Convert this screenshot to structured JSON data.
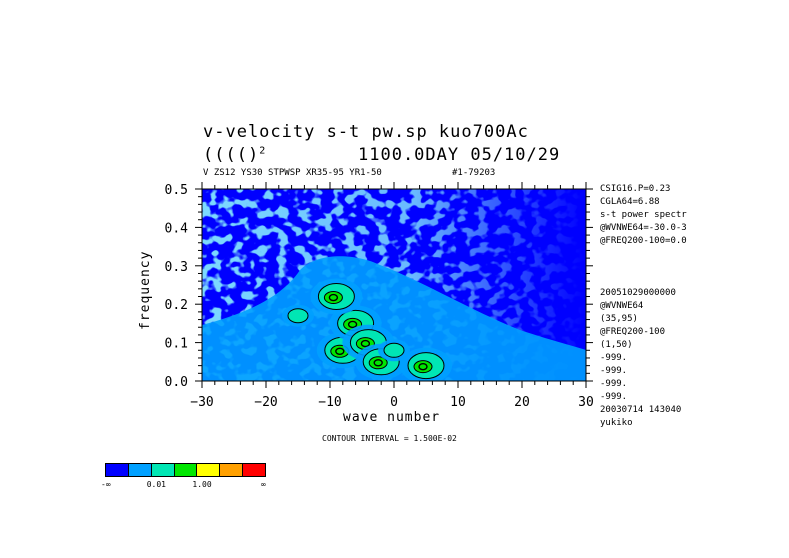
{
  "titles": {
    "line1": "v-velocity s-t pw.sp  kuo700Ac",
    "line2": "(((()",
    "line2_sup": "2",
    "line2_right": "1100.0DAY 05/10/29",
    "subtitle": "V ZS12 YS30 STPWSP XR35-95 YR1-50",
    "subtitle_right": "#1-79203"
  },
  "side_info": [
    "CSIG16.P=0.23",
    "CGLA64=6.88",
    "s-t power spectr",
    "@WVNWE64=-30.0-3",
    "@FREQ200-100=0.0",
    "",
    "",
    "",
    "20051029000000",
    "@WVNWE64",
    "(35,95)",
    "@FREQ200-100",
    "(1,50)",
    "-999.",
    "-999.",
    "-999.",
    "-999.",
    "20030714 143040",
    "yukiko"
  ],
  "contour_interval": "CONTOUR INTERVAL = 1.500E-02",
  "colorbar": {
    "colors": [
      "#0000ff",
      "#00a0ff",
      "#00e6b4",
      "#00e600",
      "#ffff00",
      "#ffa000",
      "#ff0000"
    ],
    "labels": [
      "-∞",
      "0.01",
      "1.00",
      "∞"
    ]
  },
  "chart_data": {
    "type": "heatmap",
    "xlabel": "wave number",
    "ylabel": "frequency",
    "xlim": [
      -30,
      30
    ],
    "ylim": [
      0.0,
      0.5
    ],
    "x_ticks": [
      -30,
      -20,
      -10,
      0,
      10,
      20,
      30
    ],
    "y_ticks": [
      0.0,
      0.1,
      0.2,
      0.3,
      0.4,
      0.5
    ],
    "y_tick_labels": [
      "0.0",
      "0.1",
      "0.2",
      "0.3",
      "0.4",
      "0.5"
    ],
    "levels": [
      "below 0.01",
      "0.01-1.00",
      "above 1.00"
    ],
    "peaks": [
      {
        "x": -8,
        "y": 0.08,
        "level": "high"
      },
      {
        "x": -6,
        "y": 0.15,
        "level": "high"
      },
      {
        "x": -4,
        "y": 0.1,
        "level": "high"
      },
      {
        "x": -2,
        "y": 0.05,
        "level": "high"
      },
      {
        "x": -9,
        "y": 0.22,
        "level": "high"
      },
      {
        "x": 5,
        "y": 0.04,
        "level": "high"
      },
      {
        "x": -15,
        "y": 0.17,
        "level": "medium"
      },
      {
        "x": 0,
        "y": 0.08,
        "level": "medium"
      }
    ]
  }
}
